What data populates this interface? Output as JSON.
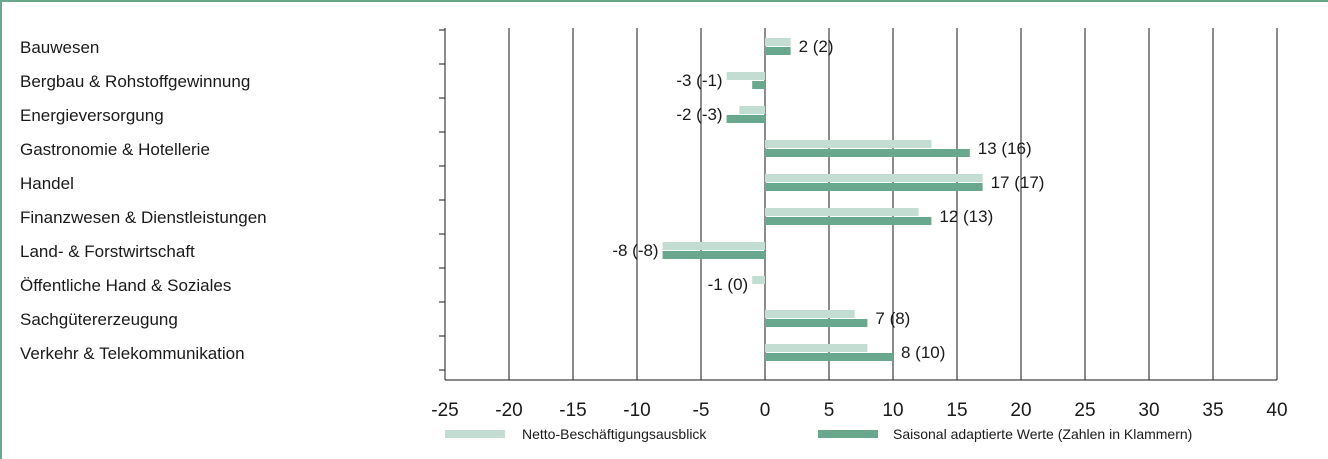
{
  "colors": {
    "frame": "#6aa88e",
    "netto": "#c4ddd2",
    "saisonal": "#6aa88e",
    "grid": "#1a1a1a"
  },
  "chart_data": {
    "type": "bar",
    "orientation": "horizontal",
    "categories": [
      "Bauwesen",
      "Bergbau & Rohstoffgewinnung",
      "Energieversorgung",
      "Gastronomie & Hotellerie",
      "Handel",
      "Finanzwesen & Dienstleistungen",
      "Land- & Forstwirtschaft",
      "Öffentliche Hand & Soziales",
      "Sachgütererzeugung",
      "Verkehr & Telekommunikation"
    ],
    "series": [
      {
        "name": "Netto-Beschäftigungsausblick",
        "color": "#c4ddd2",
        "values": [
          2,
          -3,
          -2,
          13,
          17,
          12,
          -8,
          -1,
          7,
          8
        ]
      },
      {
        "name": "Saisonal adaptierte Werte (Zahlen in Klammern)",
        "color": "#6aa88e",
        "values": [
          2,
          -1,
          -3,
          16,
          17,
          13,
          -8,
          0,
          8,
          10
        ]
      }
    ],
    "data_labels": [
      "2 (2)",
      "-3 (-1)",
      "-2 (-3)",
      "13 (16)",
      "17 (17)",
      "12 (13)",
      "-8 (-8)",
      "-1 (0)",
      "7 (8)",
      "8 (10)"
    ],
    "xlim": [
      -25,
      40
    ],
    "xticks": [
      "-25",
      "-20",
      "-15",
      "-10",
      "-5",
      "0",
      "5",
      "10",
      "15",
      "20",
      "25",
      "30",
      "35",
      "40"
    ],
    "grid": "vertical",
    "legend_position": "bottom"
  }
}
